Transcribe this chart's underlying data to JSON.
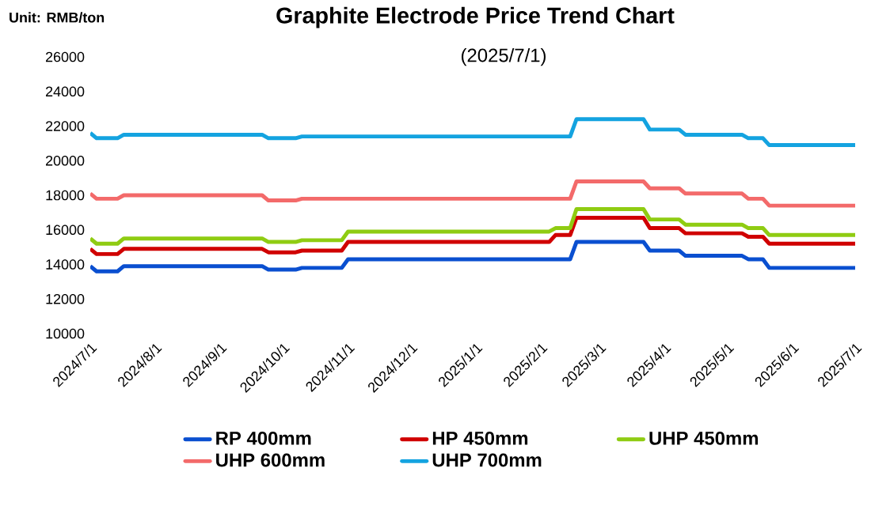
{
  "chart_data": {
    "type": "line",
    "title": "Graphite Electrode Price Trend Chart",
    "subtitle": "(2025/7/1)",
    "annotations": [
      "Unit: RMB/ton"
    ],
    "x": [
      "2024-07-01",
      "2024-07-04",
      "2024-07-14",
      "2024-07-17",
      "2024-09-21",
      "2024-09-24",
      "2024-10-07",
      "2024-10-10",
      "2024-10-29",
      "2024-11-01",
      "2025-02-05",
      "2025-02-08",
      "2025-02-15",
      "2025-02-18",
      "2025-03-22",
      "2025-03-25",
      "2025-04-08",
      "2025-04-11",
      "2025-05-08",
      "2025-05-11",
      "2025-05-18",
      "2025-05-21",
      "2025-07-01"
    ],
    "series": [
      {
        "name": "RP 400mm",
        "color": "#0a4fd0",
        "values": [
          13900,
          13600,
          13600,
          13900,
          13900,
          13700,
          13700,
          13800,
          13800,
          14300,
          14300,
          14300,
          14300,
          15300,
          15300,
          14800,
          14800,
          14500,
          14500,
          14300,
          14300,
          13800,
          13800
        ]
      },
      {
        "name": "HP 450mm",
        "color": "#d00000",
        "values": [
          14900,
          14600,
          14600,
          14900,
          14900,
          14700,
          14700,
          14800,
          14800,
          15300,
          15300,
          15700,
          15700,
          16700,
          16700,
          16100,
          16100,
          15800,
          15800,
          15600,
          15600,
          15200,
          15200
        ]
      },
      {
        "name": "UHP 450mm",
        "color": "#8fcc12",
        "values": [
          15500,
          15200,
          15200,
          15500,
          15500,
          15300,
          15300,
          15400,
          15400,
          15900,
          15900,
          16100,
          16100,
          17200,
          17200,
          16600,
          16600,
          16300,
          16300,
          16100,
          16100,
          15700,
          15700
        ]
      },
      {
        "name": "UHP 600mm",
        "color": "#f36a6a",
        "values": [
          18100,
          17800,
          17800,
          18000,
          18000,
          17700,
          17700,
          17800,
          17800,
          17800,
          17800,
          17800,
          17800,
          18800,
          18800,
          18400,
          18400,
          18100,
          18100,
          17800,
          17800,
          17400,
          17400
        ]
      },
      {
        "name": "UHP 700mm",
        "color": "#14a3e0",
        "values": [
          21600,
          21300,
          21300,
          21500,
          21500,
          21300,
          21300,
          21400,
          21400,
          21400,
          21400,
          21400,
          21400,
          22400,
          22400,
          21800,
          21800,
          21500,
          21500,
          21300,
          21300,
          20900,
          20900
        ]
      }
    ],
    "xlim": [
      "2024-07-01",
      "2025-07-01"
    ],
    "xticks": [
      {
        "value": "2024-07-01",
        "label": "2024/7/1"
      },
      {
        "value": "2024-08-01",
        "label": "2024/8/1"
      },
      {
        "value": "2024-09-01",
        "label": "2024/9/1"
      },
      {
        "value": "2024-10-01",
        "label": "2024/10/1"
      },
      {
        "value": "2024-11-01",
        "label": "2024/11/1"
      },
      {
        "value": "2024-12-01",
        "label": "2024/12/1"
      },
      {
        "value": "2025-01-01",
        "label": "2025/1/1"
      },
      {
        "value": "2025-02-01",
        "label": "2025/2/1"
      },
      {
        "value": "2025-03-01",
        "label": "2025/3/1"
      },
      {
        "value": "2025-04-01",
        "label": "2025/4/1"
      },
      {
        "value": "2025-05-01",
        "label": "2025/5/1"
      },
      {
        "value": "2025-06-01",
        "label": "2025/6/1"
      },
      {
        "value": "2025-07-01",
        "label": "2025/7/1"
      }
    ],
    "ylim": [
      10000,
      26000
    ],
    "yticks": [
      10000,
      12000,
      14000,
      16000,
      18000,
      20000,
      22000,
      24000,
      26000
    ],
    "grid": false,
    "legend": "bottom",
    "marker": "none",
    "line_style": "solid"
  }
}
